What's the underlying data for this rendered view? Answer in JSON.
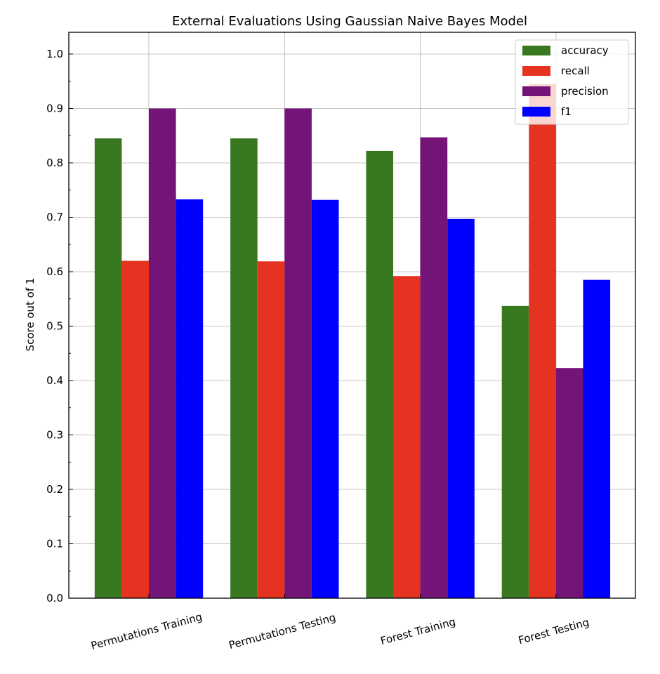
{
  "chart_data": {
    "type": "bar",
    "title": "External Evaluations Using Gaussian Naive Bayes Model",
    "xlabel": "",
    "ylabel": "Score out of 1",
    "categories": [
      "Permutations Training",
      "Permutations Testing",
      "Forest Training",
      "Forest Testing"
    ],
    "series": [
      {
        "name": "accuracy",
        "color": "#38781f",
        "values": [
          0.845,
          0.845,
          0.822,
          0.537
        ]
      },
      {
        "name": "recall",
        "color": "#e63220",
        "values": [
          0.62,
          0.619,
          0.592,
          0.945
        ]
      },
      {
        "name": "precision",
        "color": "#741478",
        "values": [
          0.9,
          0.9,
          0.847,
          0.423
        ]
      },
      {
        "name": "f1",
        "color": "#0000ff",
        "values": [
          0.733,
          0.732,
          0.697,
          0.585
        ]
      }
    ],
    "ylim": [
      0,
      1.04
    ],
    "yticks": [
      "0.0",
      "0.1",
      "0.2",
      "0.3",
      "0.4",
      "0.5",
      "0.6",
      "0.7",
      "0.8",
      "0.9",
      "1.0"
    ],
    "grid": true,
    "legend_position": "top-right",
    "x_tick_rotation": "angled"
  }
}
